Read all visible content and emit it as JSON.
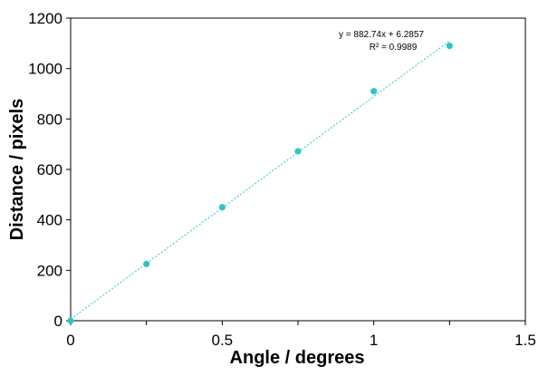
{
  "chart_data": {
    "type": "scatter",
    "title": "",
    "xlabel": "Angle / degrees",
    "ylabel": "Distance / pixels",
    "xlim": [
      0,
      1.5
    ],
    "ylim": [
      0,
      1200
    ],
    "x_ticks": [
      0,
      0.5,
      1,
      1.5
    ],
    "x_tick_labels": [
      "0",
      "0.5",
      "1",
      "1.5"
    ],
    "y_ticks": [
      0,
      200,
      400,
      600,
      800,
      1000,
      1200
    ],
    "y_tick_labels": [
      "0",
      "200",
      "400",
      "600",
      "800",
      "1000",
      "1200"
    ],
    "grid": false,
    "legend": "none",
    "series": [
      {
        "x": [
          0,
          0.25,
          0.5,
          0.75,
          1.0,
          1.25
        ],
        "y": [
          0,
          225,
          450,
          672,
          910,
          1090
        ],
        "color": "#2ec4c4"
      }
    ],
    "trendline": {
      "type": "linear",
      "slope": 882.74,
      "intercept": 6.2857,
      "x_range": [
        0,
        1.25
      ],
      "equation_text": "y = 882.74x + 6.2857",
      "r2_text": "R² = 0.9989",
      "color": "#2ec4c4"
    }
  }
}
